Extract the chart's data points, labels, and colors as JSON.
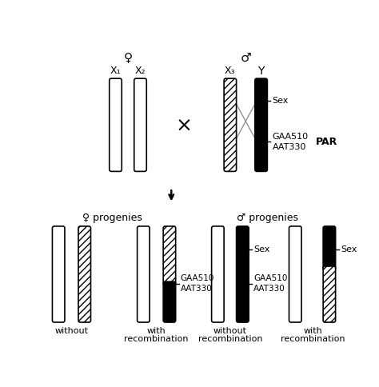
{
  "bg_color": "#ffffff",
  "top_section": {
    "female_label": "♀",
    "male_label": "♂",
    "female_x1_label": "X₁",
    "female_x2_label": "X₂",
    "male_x3_label": "X₃",
    "male_y_label": "Y",
    "cross_symbol": "×",
    "par_label": "PAR",
    "sex_label": "Sex",
    "gaa_label": "GAA510",
    "aat_label": "AAT330"
  },
  "bottom_section": {
    "female_progenies": "♀ progenies",
    "male_progenies": "♂ progenies",
    "without_label": "without",
    "with_label": "with",
    "recombination_label": "recombination",
    "sex_label": "Sex",
    "gaa_label": "GAA510",
    "aat_label": "AAT330"
  }
}
